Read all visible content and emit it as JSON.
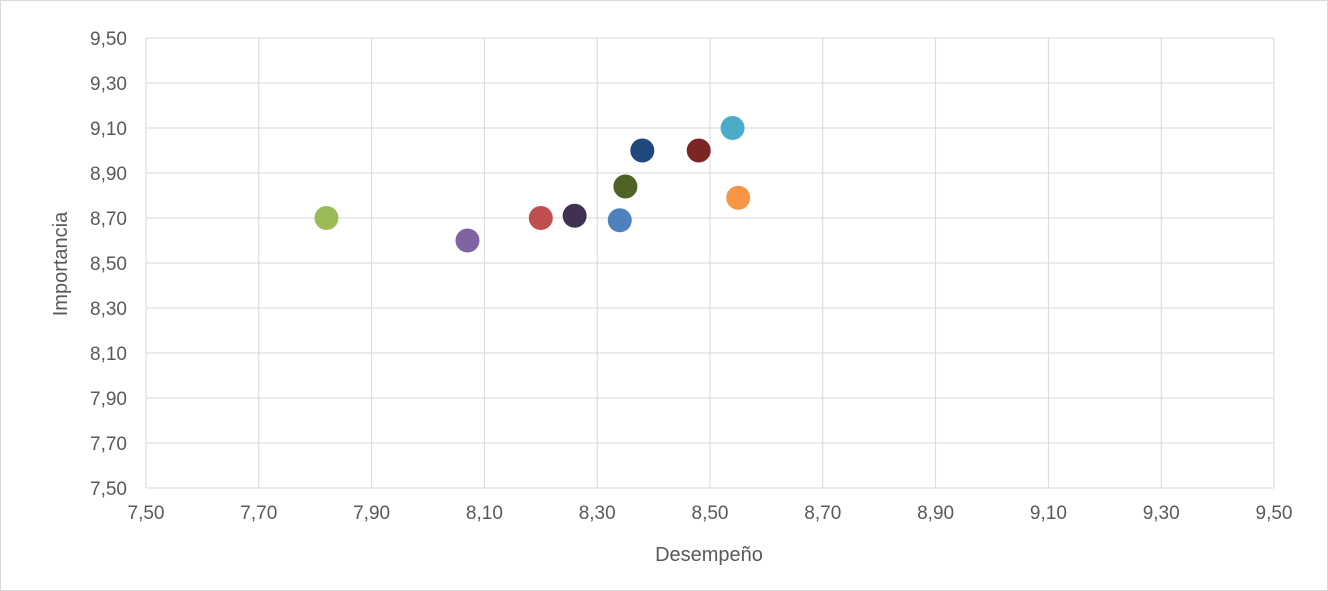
{
  "chart_data": {
    "type": "scatter",
    "title": "",
    "xlabel": "Desempeño",
    "ylabel": "Importancia",
    "xlim": [
      7.5,
      9.5
    ],
    "ylim": [
      7.5,
      9.5
    ],
    "x_ticks": [
      "7,50",
      "7,70",
      "7,90",
      "8,10",
      "8,30",
      "8,50",
      "8,70",
      "8,90",
      "9,10",
      "9,30",
      "9,50"
    ],
    "y_ticks": [
      "7,50",
      "7,70",
      "7,90",
      "8,10",
      "8,30",
      "8,50",
      "8,70",
      "8,90",
      "9,10",
      "9,30",
      "9,50"
    ],
    "grid": true,
    "legend": "none",
    "series": [
      {
        "x": 7.82,
        "y": 8.7,
        "color": "#9bbb59"
      },
      {
        "x": 8.07,
        "y": 8.6,
        "color": "#8064a2"
      },
      {
        "x": 8.2,
        "y": 8.7,
        "color": "#c0504d"
      },
      {
        "x": 8.26,
        "y": 8.71,
        "color": "#403152"
      },
      {
        "x": 8.34,
        "y": 8.69,
        "color": "#4f81bd"
      },
      {
        "x": 8.35,
        "y": 8.84,
        "color": "#4f6228"
      },
      {
        "x": 8.38,
        "y": 9.0,
        "color": "#1f497d"
      },
      {
        "x": 8.48,
        "y": 9.0,
        "color": "#7b2525"
      },
      {
        "x": 8.54,
        "y": 9.1,
        "color": "#4bacc6"
      },
      {
        "x": 8.55,
        "y": 8.79,
        "color": "#f79646"
      }
    ]
  }
}
